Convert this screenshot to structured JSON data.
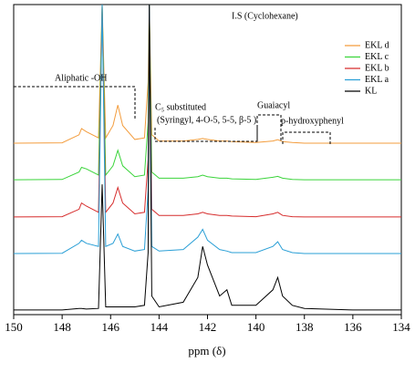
{
  "chart_data": {
    "type": "line",
    "x_label": "ppm (δ)",
    "xlim": [
      150,
      134
    ],
    "xticks": [
      150,
      148,
      146,
      144,
      142,
      140,
      138,
      136,
      134
    ],
    "ylim": [
      0,
      100
    ],
    "legend": "upper right",
    "annotations": [
      "I.S (Cyclohexane)",
      "Aliphatic -OH",
      "C₅ substituted",
      "(Syringyl, 4-O-5, 5-5, β-5 )",
      "Guaiacyl",
      "p-hydroxyphenyl"
    ],
    "x": [
      150,
      148,
      147.3,
      147.2,
      147.0,
      146.5,
      146.35,
      146.2,
      145.9,
      145.7,
      145.5,
      145.0,
      144.6,
      144.45,
      144.4,
      144.3,
      144.0,
      143.0,
      142.4,
      142.2,
      142.0,
      141.5,
      141.2,
      141.0,
      140.0,
      139.3,
      139.1,
      138.9,
      138.5,
      138.0,
      136.0,
      134.0
    ],
    "series": [
      {
        "name": "EKL d",
        "color": "#f39c3c",
        "values": [
          55.3,
          55.4,
          58,
          60,
          59,
          57,
          100,
          57,
          61,
          67.6,
          61,
          56.5,
          57,
          75,
          100,
          58,
          56,
          56,
          56.5,
          56.8,
          56.5,
          56,
          56,
          55.8,
          55.5,
          56,
          56.4,
          55.8,
          55.5,
          55.3,
          55.3,
          55.3
        ]
      },
      {
        "name": "EKL c",
        "color": "#3ad43a",
        "values": [
          43.5,
          43.6,
          46,
          47.5,
          47,
          45,
          100,
          45,
          48,
          53,
          48,
          44.5,
          45,
          62,
          100,
          46,
          44,
          44,
          44.5,
          45,
          44.5,
          44,
          44,
          43.8,
          43.6,
          44.3,
          44.6,
          44,
          43.6,
          43.5,
          43.5,
          43.5
        ]
      },
      {
        "name": "EKL b",
        "color": "#d62c2c",
        "values": [
          31.5,
          31.6,
          34,
          36,
          35,
          33,
          100,
          33,
          36,
          41,
          36,
          32.5,
          33,
          50,
          100,
          34,
          32,
          32,
          32.5,
          33,
          32.5,
          32,
          32,
          31.8,
          31.6,
          32.5,
          33,
          32,
          31.6,
          31.5,
          31.5,
          31.5
        ]
      },
      {
        "name": "EKL a",
        "color": "#2a9fd6",
        "values": [
          19.7,
          19.8,
          23,
          24,
          23,
          22,
          100,
          22,
          23,
          26,
          22,
          20.5,
          21,
          40,
          100,
          22,
          20.5,
          21,
          25,
          27.5,
          24,
          21,
          20.5,
          20,
          20,
          22,
          23.5,
          21,
          20,
          19.7,
          19.7,
          19.7
        ]
      },
      {
        "name": "KL",
        "color": "#000000",
        "values": [
          1.5,
          1.5,
          2,
          2,
          1.8,
          2,
          42,
          2.5,
          2.5,
          2.5,
          2.5,
          2.5,
          3,
          20,
          100,
          6,
          2.5,
          4,
          12,
          22,
          16,
          6,
          8,
          3,
          3,
          8,
          12,
          6,
          3,
          2,
          1.5,
          1.5
        ]
      }
    ]
  }
}
